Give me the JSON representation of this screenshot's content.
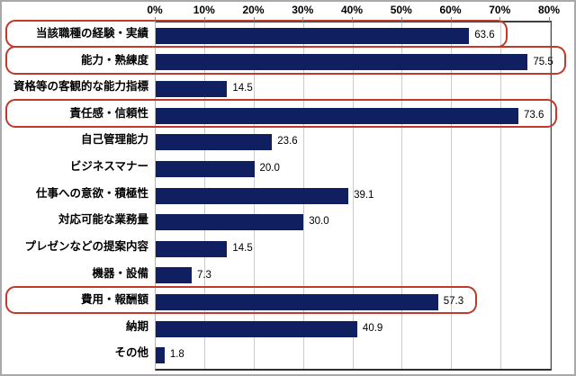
{
  "chart_data": {
    "type": "bar",
    "orientation": "horizontal",
    "title": "",
    "categories": [
      "当該職種の経験・実績",
      "能力・熟練度",
      "資格等の客観的な能力指標",
      "責任感・信頼性",
      "自己管理能力",
      "ビジネスマナー",
      "仕事への意欲・積極性",
      "対応可能な業務量",
      "プレゼンなどの提案内容",
      "機器・設備",
      "費用・報酬額",
      "納期",
      "その他"
    ],
    "values": [
      63.6,
      75.5,
      14.5,
      73.6,
      23.6,
      20.0,
      39.1,
      30.0,
      14.5,
      7.3,
      57.3,
      40.9,
      1.8
    ],
    "value_labels": [
      "63.6",
      "75.5",
      "14.5",
      "73.6",
      "23.6",
      "20.0",
      "39.1",
      "30.0",
      "14.5",
      "7.3",
      "57.3",
      "40.9",
      "1.8"
    ],
    "highlighted_indices": [
      0,
      1,
      3,
      10
    ],
    "highlighted_categories": [
      "当該職種の経験・実績",
      "能力・熟練度",
      "責任感・信頼性",
      "費用・報酬額"
    ],
    "xlabel": "",
    "ylabel": "",
    "axis": {
      "position": "top",
      "min": 0,
      "max": 80,
      "tick_step": 10,
      "ticks": [
        "0%",
        "10%",
        "20%",
        "30%",
        "40%",
        "50%",
        "60%",
        "70%",
        "80%"
      ]
    },
    "grid": true,
    "legend": null,
    "colors": {
      "bar": "#101f60",
      "highlight_ring": "#c0392b",
      "gridline": "#cbcbcb",
      "axis_line": "#3f3f3f",
      "background": "#ffffff",
      "frame": "#a9a9a9",
      "text": "#000000"
    }
  }
}
